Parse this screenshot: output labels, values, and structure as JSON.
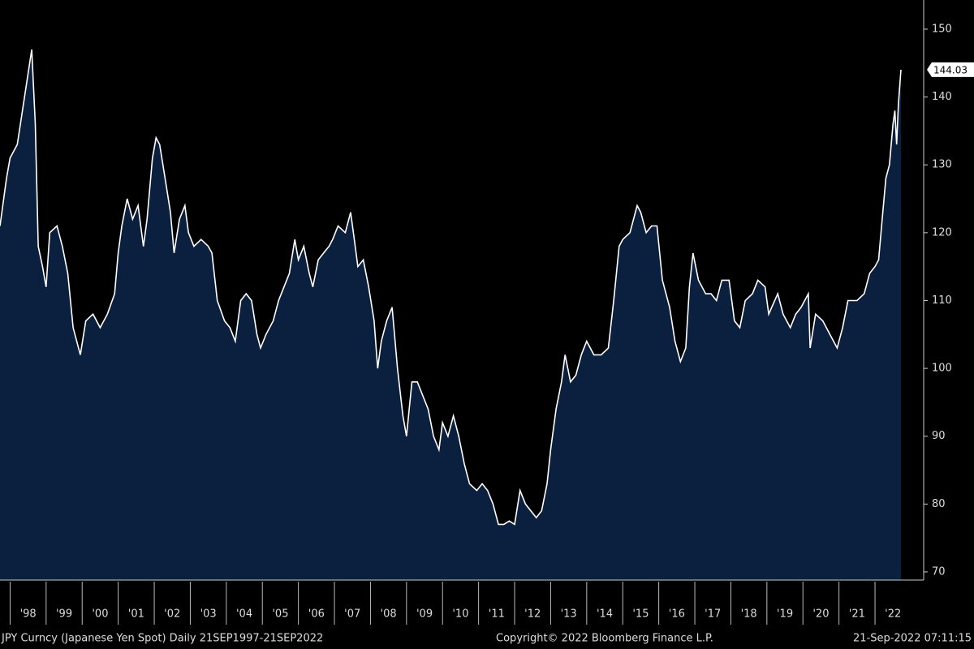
{
  "chart_data": {
    "type": "area",
    "source": "JPY Curncy (Japanese Yen Spot)  Daily 21SEP1997-21SEP2022",
    "copyright": "Copyright© 2022 Bloomberg Finance L.P.",
    "timestamp": "21-Sep-2022 07:11:15",
    "x": [
      1997.72,
      1997.9,
      1998.0,
      1998.2,
      1998.4,
      1998.6,
      1998.7,
      1998.78,
      1998.9,
      1999.0,
      1999.1,
      1999.3,
      1999.45,
      1999.6,
      1999.75,
      1999.95,
      2000.1,
      2000.3,
      2000.5,
      2000.7,
      2000.9,
      2001.0,
      2001.1,
      2001.25,
      2001.4,
      2001.55,
      2001.7,
      2001.8,
      2001.95,
      2002.05,
      2002.15,
      2002.3,
      2002.45,
      2002.55,
      2002.7,
      2002.85,
      2002.95,
      2003.1,
      2003.3,
      2003.5,
      2003.6,
      2003.75,
      2003.95,
      2004.1,
      2004.25,
      2004.4,
      2004.55,
      2004.7,
      2004.85,
      2004.95,
      2005.1,
      2005.3,
      2005.45,
      2005.6,
      2005.75,
      2005.9,
      2006.0,
      2006.15,
      2006.3,
      2006.4,
      2006.55,
      2006.7,
      2006.85,
      2006.95,
      2007.1,
      2007.3,
      2007.45,
      2007.55,
      2007.65,
      2007.8,
      2007.95,
      2008.1,
      2008.2,
      2008.3,
      2008.45,
      2008.6,
      2008.75,
      2008.9,
      2009.0,
      2009.15,
      2009.3,
      2009.45,
      2009.6,
      2009.75,
      2009.9,
      2010.0,
      2010.15,
      2010.3,
      2010.45,
      2010.6,
      2010.75,
      2010.95,
      2011.1,
      2011.25,
      2011.4,
      2011.55,
      2011.7,
      2011.85,
      2012.0,
      2012.15,
      2012.3,
      2012.45,
      2012.6,
      2012.75,
      2012.9,
      2013.0,
      2013.15,
      2013.3,
      2013.4,
      2013.55,
      2013.7,
      2013.85,
      2014.0,
      2014.2,
      2014.4,
      2014.6,
      2014.75,
      2014.9,
      2015.0,
      2015.2,
      2015.4,
      2015.5,
      2015.65,
      2015.8,
      2015.95,
      2016.1,
      2016.3,
      2016.45,
      2016.6,
      2016.75,
      2016.85,
      2016.95,
      2017.1,
      2017.3,
      2017.45,
      2017.6,
      2017.75,
      2017.95,
      2018.1,
      2018.25,
      2018.4,
      2018.6,
      2018.75,
      2018.95,
      2019.05,
      2019.3,
      2019.45,
      2019.65,
      2019.8,
      2019.95,
      2020.15,
      2020.2,
      2020.35,
      2020.55,
      2020.75,
      2020.95,
      2021.1,
      2021.25,
      2021.5,
      2021.7,
      2021.85,
      2022.0,
      2022.1,
      2022.2,
      2022.3,
      2022.4,
      2022.5,
      2022.55,
      2022.6,
      2022.65,
      2022.72
    ],
    "values": [
      121,
      128,
      131,
      133,
      140,
      147,
      136,
      118,
      115,
      112,
      120,
      121,
      118,
      114,
      106,
      102,
      107,
      108,
      106,
      108,
      111,
      117,
      121,
      125,
      122,
      124,
      118,
      122,
      131,
      134,
      133,
      128,
      123,
      117,
      122,
      124,
      120,
      118,
      119,
      118,
      117,
      110,
      107,
      106,
      104,
      110,
      111,
      110,
      105,
      103,
      105,
      107,
      110,
      112,
      114,
      119,
      116,
      118,
      114,
      112,
      116,
      117,
      118,
      119,
      121,
      120,
      123,
      119,
      115,
      116,
      112,
      107,
      100,
      104,
      107,
      109,
      100,
      93,
      90,
      98,
      98,
      96,
      94,
      90,
      88,
      92,
      90,
      93,
      90,
      86,
      83,
      82,
      83,
      82,
      80,
      77,
      77,
      77.5,
      77,
      82,
      80,
      79,
      78,
      79,
      83,
      88,
      94,
      98,
      102,
      98,
      99,
      102,
      104,
      102,
      102,
      103,
      110,
      118,
      119,
      120,
      124,
      123,
      120,
      121,
      121,
      113,
      109,
      104,
      101,
      103,
      112,
      117,
      113,
      111,
      111,
      110,
      113,
      113,
      107,
      106,
      110,
      111,
      113,
      112,
      108,
      111,
      108,
      106,
      108,
      109,
      111,
      103,
      108,
      107,
      105,
      103,
      106,
      110,
      110,
      111,
      114,
      115,
      116,
      122,
      128,
      130,
      136,
      138,
      133,
      139,
      144.03
    ],
    "color": "#ffffff",
    "fill": "#0b1f3f",
    "xlim": [
      1997.72,
      2022.72
    ],
    "xticks": [
      {
        "value": 1998.5,
        "label": "'98"
      },
      {
        "value": 1999.5,
        "label": "'99"
      },
      {
        "value": 2000.5,
        "label": "'00"
      },
      {
        "value": 2001.5,
        "label": "'01"
      },
      {
        "value": 2002.5,
        "label": "'02"
      },
      {
        "value": 2003.5,
        "label": "'03"
      },
      {
        "value": 2004.5,
        "label": "'04"
      },
      {
        "value": 2005.5,
        "label": "'05"
      },
      {
        "value": 2006.5,
        "label": "'06"
      },
      {
        "value": 2007.5,
        "label": "'07"
      },
      {
        "value": 2008.5,
        "label": "'08"
      },
      {
        "value": 2009.5,
        "label": "'09"
      },
      {
        "value": 2010.5,
        "label": "'10"
      },
      {
        "value": 2011.5,
        "label": "'11"
      },
      {
        "value": 2012.5,
        "label": "'12"
      },
      {
        "value": 2013.5,
        "label": "'13"
      },
      {
        "value": 2014.5,
        "label": "'14"
      },
      {
        "value": 2015.5,
        "label": "'15"
      },
      {
        "value": 2016.5,
        "label": "'16"
      },
      {
        "value": 2017.5,
        "label": "'17"
      },
      {
        "value": 2018.5,
        "label": "'18"
      },
      {
        "value": 2019.5,
        "label": "'19"
      },
      {
        "value": 2020.5,
        "label": "'20"
      },
      {
        "value": 2021.5,
        "label": "'21"
      },
      {
        "value": 2022.5,
        "label": "'22"
      }
    ],
    "ylim": [
      68.8,
      154.3
    ],
    "yticks": [
      70,
      80,
      90,
      100,
      110,
      120,
      130,
      140,
      150
    ]
  }
}
